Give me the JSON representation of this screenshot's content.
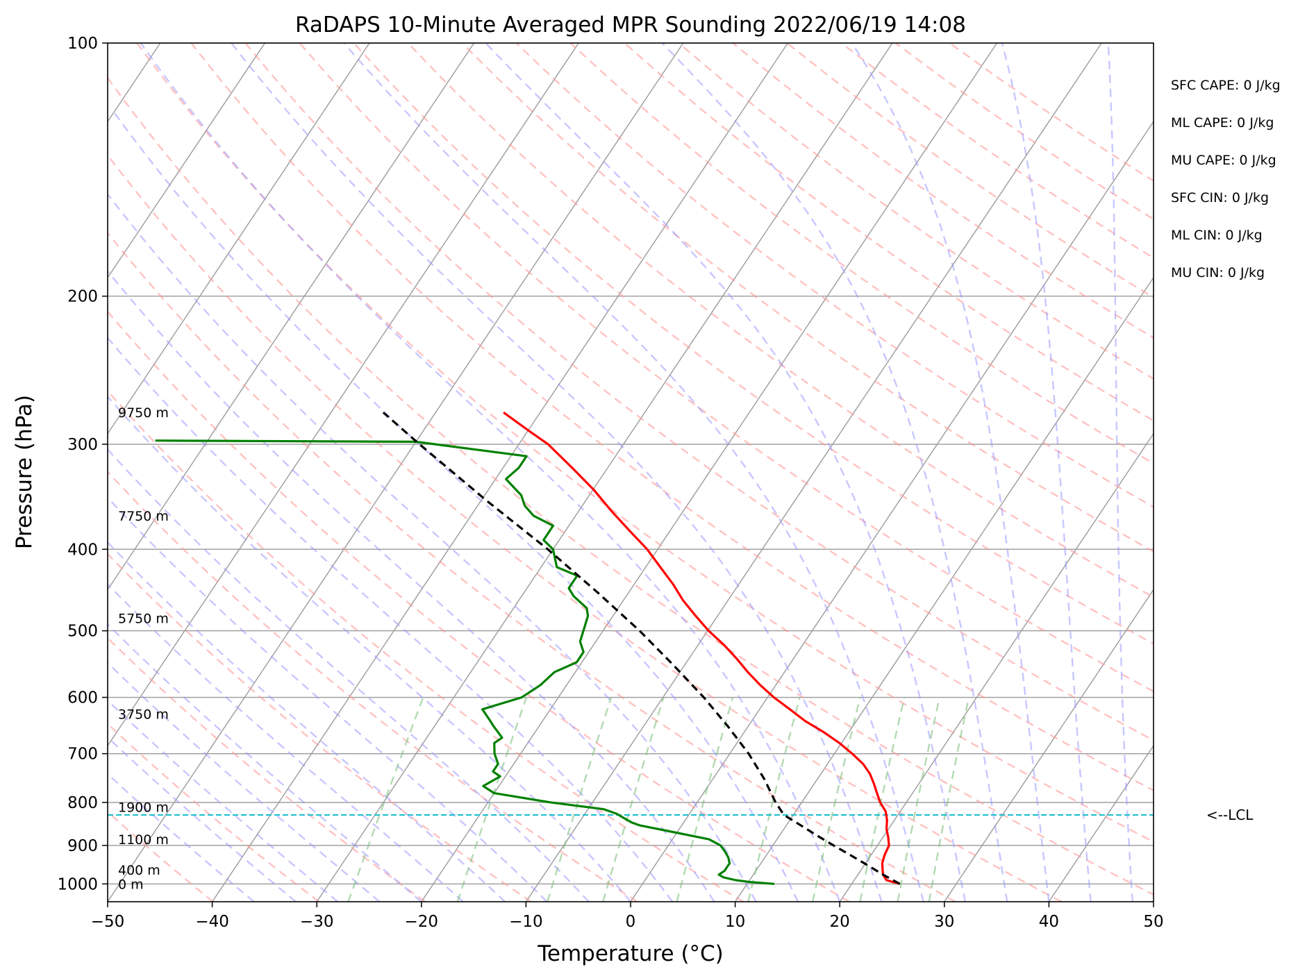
{
  "chart_data": {
    "type": "line",
    "subtype": "skew-T log-P sounding",
    "title": "RaDAPS 10-Minute Averaged MPR Sounding 2022/06/19 14:08",
    "xlabel": "Temperature (°C)",
    "ylabel": "Pressure (hPa)",
    "xlim": [
      -50,
      50
    ],
    "ylim_pressure": [
      1050,
      100
    ],
    "x_ticks": [
      "−50",
      "−40",
      "−30",
      "−20",
      "−10",
      "0",
      "10",
      "20",
      "30",
      "40",
      "50"
    ],
    "y_ticks": [
      "100",
      "200",
      "300",
      "400",
      "500",
      "600",
      "700",
      "800",
      "900",
      "1000"
    ],
    "grid": true,
    "legend": "none",
    "colors": {
      "temperature": "#ff0000",
      "dewpoint": "#008000",
      "parcel": "#000000",
      "lcl_line": "#17becf",
      "isotherms": "#a0a0a0",
      "dry_adiabats": "#ff9999",
      "moist_adiabats": "#9999ff",
      "mixing_ratio": "#80c080"
    },
    "height_labels": [
      {
        "text": "9750 m",
        "p": 275
      },
      {
        "text": "7750 m",
        "p": 365
      },
      {
        "text": "5750 m",
        "p": 483
      },
      {
        "text": "3750 m",
        "p": 628
      },
      {
        "text": "1900 m",
        "p": 810
      },
      {
        "text": "1100 m",
        "p": 885
      },
      {
        "text": "400 m",
        "p": 962
      },
      {
        "text": "0 m",
        "p": 1000
      }
    ],
    "indices": [
      "SFC CAPE: 0 J/kg",
      "ML CAPE: 0 J/kg",
      "MU CAPE: 0 J/kg",
      "SFC CIN: 0 J/kg",
      "ML CIN: 0 J/kg",
      "MU CIN: 0 J/kg"
    ],
    "lcl": {
      "label": "<--LCL",
      "p": 828
    },
    "series": [
      {
        "role": "temperature",
        "points": [
          [
            1000,
            24.6
          ],
          [
            990,
            23.1
          ],
          [
            975,
            22.4
          ],
          [
            960,
            22.0
          ],
          [
            945,
            21.6
          ],
          [
            925,
            21.3
          ],
          [
            900,
            21.1
          ],
          [
            880,
            20.5
          ],
          [
            860,
            19.8
          ],
          [
            840,
            19.3
          ],
          [
            820,
            18.6
          ],
          [
            800,
            17.5
          ],
          [
            780,
            16.6
          ],
          [
            760,
            15.7
          ],
          [
            740,
            14.7
          ],
          [
            720,
            13.4
          ],
          [
            700,
            11.7
          ],
          [
            680,
            9.8
          ],
          [
            660,
            7.6
          ],
          [
            640,
            5.1
          ],
          [
            620,
            2.9
          ],
          [
            600,
            0.6
          ],
          [
            580,
            -1.5
          ],
          [
            560,
            -3.5
          ],
          [
            540,
            -5.4
          ],
          [
            520,
            -7.5
          ],
          [
            500,
            -9.9
          ],
          [
            480,
            -12.1
          ],
          [
            460,
            -14.3
          ],
          [
            440,
            -16.3
          ],
          [
            420,
            -18.6
          ],
          [
            400,
            -21.0
          ],
          [
            380,
            -23.9
          ],
          [
            360,
            -26.9
          ],
          [
            340,
            -29.9
          ],
          [
            320,
            -33.4
          ],
          [
            300,
            -37.2
          ],
          [
            290,
            -39.7
          ],
          [
            275,
            -43.5
          ]
        ]
      },
      {
        "role": "dewpoint",
        "points": [
          [
            1000,
            12.6
          ],
          [
            995,
            10.2
          ],
          [
            990,
            8.7
          ],
          [
            982,
            7.3
          ],
          [
            975,
            6.7
          ],
          [
            965,
            7.0
          ],
          [
            955,
            7.0
          ],
          [
            945,
            7.0
          ],
          [
            930,
            6.5
          ],
          [
            915,
            5.8
          ],
          [
            900,
            5.0
          ],
          [
            885,
            3.5
          ],
          [
            865,
            -1.0
          ],
          [
            852,
            -4.0
          ],
          [
            845,
            -5.0
          ],
          [
            835,
            -6.0
          ],
          [
            825,
            -7.0
          ],
          [
            815,
            -8.5
          ],
          [
            800,
            -14.0
          ],
          [
            780,
            -20.0
          ],
          [
            765,
            -21.5
          ],
          [
            745,
            -20.5
          ],
          [
            735,
            -21.5
          ],
          [
            720,
            -21.5
          ],
          [
            700,
            -22.5
          ],
          [
            680,
            -23.2
          ],
          [
            670,
            -22.8
          ],
          [
            650,
            -24.3
          ],
          [
            640,
            -25.0
          ],
          [
            620,
            -26.5
          ],
          [
            600,
            -23.5
          ],
          [
            580,
            -22.5
          ],
          [
            560,
            -22.0
          ],
          [
            545,
            -20.5
          ],
          [
            530,
            -20.5
          ],
          [
            515,
            -21.5
          ],
          [
            495,
            -22.0
          ],
          [
            480,
            -22.4
          ],
          [
            470,
            -23.0
          ],
          [
            455,
            -25.0
          ],
          [
            445,
            -26.0
          ],
          [
            430,
            -26.0
          ],
          [
            420,
            -28.5
          ],
          [
            400,
            -30.0
          ],
          [
            390,
            -31.5
          ],
          [
            375,
            -31.5
          ],
          [
            365,
            -34.0
          ],
          [
            355,
            -35.5
          ],
          [
            345,
            -36.5
          ],
          [
            330,
            -39.0
          ],
          [
            320,
            -38.5
          ],
          [
            310,
            -38.5
          ],
          [
            300,
            -48.0
          ],
          [
            298,
            -50.0
          ],
          [
            297,
            -75.0
          ]
        ]
      },
      {
        "role": "parcel",
        "points": [
          [
            1000,
            24.6
          ],
          [
            975,
            22.4
          ],
          [
            950,
            20.3
          ],
          [
            925,
            18.1
          ],
          [
            900,
            15.8
          ],
          [
            875,
            13.5
          ],
          [
            850,
            11.2
          ],
          [
            828,
            9.1
          ],
          [
            800,
            7.5
          ],
          [
            750,
            4.9
          ],
          [
            700,
            1.8
          ],
          [
            650,
            -1.9
          ],
          [
            600,
            -6.1
          ],
          [
            550,
            -11.0
          ],
          [
            500,
            -16.5
          ],
          [
            450,
            -23.0
          ],
          [
            400,
            -30.5
          ],
          [
            350,
            -39.5
          ],
          [
            300,
            -49.5
          ],
          [
            275,
            -55.0
          ]
        ]
      }
    ]
  }
}
